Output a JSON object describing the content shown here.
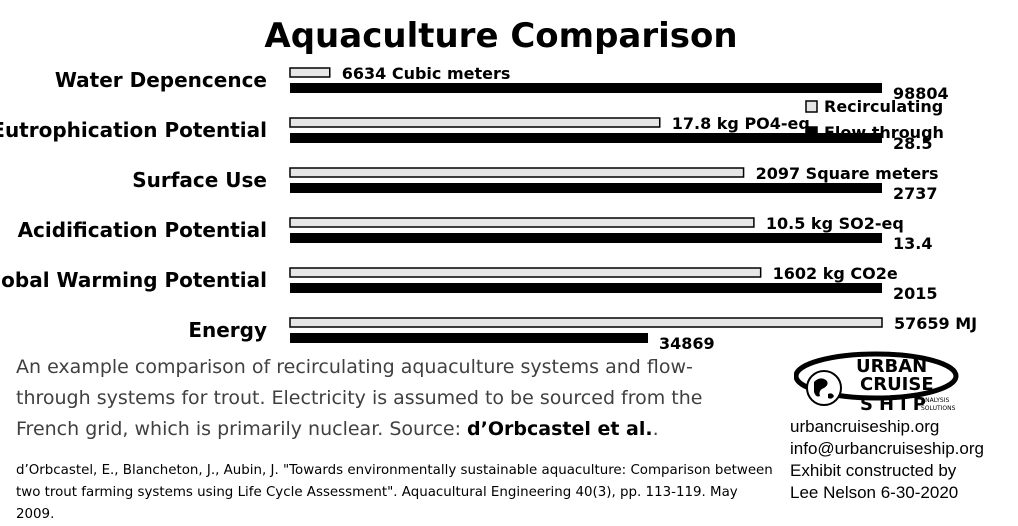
{
  "chart_data": {
    "type": "bar",
    "orientation": "horizontal",
    "title": "Aquaculture Comparison",
    "categories": [
      "Water Depencence",
      "Eutrophication Potential",
      "Surface Use",
      "Acidification Potential",
      "Global Warming Potential",
      "Energy"
    ],
    "series": [
      {
        "name": "Recirculating",
        "color": "#e6e6e6",
        "values": [
          6634,
          17.8,
          2097,
          10.5,
          1602,
          57659
        ],
        "labels": [
          "6634 Cubic meters",
          "17.8 kg PO4-eq",
          "2097 Square meters",
          "10.5 kg SO2-eq",
          "1602 kg CO2e",
          "57659 MJ"
        ]
      },
      {
        "name": "Flow through",
        "color": "#000000",
        "values": [
          98804,
          28.5,
          2737,
          13.4,
          2015,
          34869
        ],
        "labels": [
          "98804",
          "28.5",
          "2737",
          "13.4",
          "2015",
          "34869"
        ]
      }
    ],
    "legend_position": "right",
    "grid": false
  },
  "caption": {
    "text": "An example comparison of recirculating aquaculture systems and flow-through systems for trout. Electricity is assumed to be sourced from the French grid, which is primarily nuclear. Source:",
    "source": "d’Orbcastel et al.",
    "end": "."
  },
  "reference": "d’Orbcastel, E., Blancheton, J., Aubin, J. \"Towards environmentally sustainable aquaculture: Comparison between two trout farming systems using Life Cycle Assessment\". Aquacultural Engineering 40(3), pp. 113-119. May 2009.",
  "logo": {
    "line1": "URBAN",
    "line2": "CRUISE",
    "line3": "SHIP",
    "tag1": "ANALYSIS",
    "tag2": "SOLUTIONS"
  },
  "contact": {
    "website": "urbancruiseship.org",
    "email": "info@urbancruiseship.org",
    "credit1": "Exhibit constructed by",
    "credit2": "Lee Nelson 6-30-2020"
  }
}
